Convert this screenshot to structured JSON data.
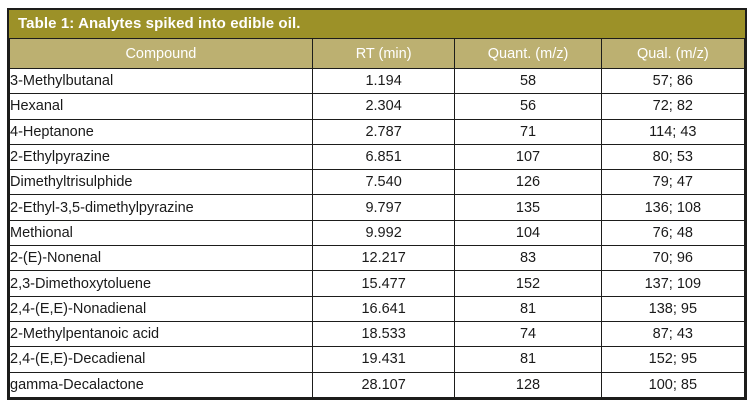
{
  "table": {
    "title": "Table 1: Analytes spiked into edible oil.",
    "columns": [
      "Compound",
      "RT (min)",
      "Quant. (m/z)",
      "Qual. (m/z)"
    ],
    "rows": [
      [
        "3-Methylbutanal",
        "1.194",
        "58",
        "57; 86"
      ],
      [
        "Hexanal",
        "2.304",
        "56",
        "72; 82"
      ],
      [
        "4-Heptanone",
        "2.787",
        "71",
        "114; 43"
      ],
      [
        "2-Ethylpyrazine",
        "6.851",
        "107",
        "80; 53"
      ],
      [
        "Dimethyltrisulphide",
        "7.540",
        "126",
        "79; 47"
      ],
      [
        "2-Ethyl-3,5-dimethylpyrazine",
        "9.797",
        "135",
        "136; 108"
      ],
      [
        "Methional",
        "9.992",
        "104",
        "76; 48"
      ],
      [
        "2-(E)-Nonenal",
        "12.217",
        "83",
        "70; 96"
      ],
      [
        "2,3-Dimethoxytoluene",
        "15.477",
        "152",
        "137; 109"
      ],
      [
        "2,4-(E,E)-Nonadienal",
        "16.641",
        "81",
        "138; 95"
      ],
      [
        "2-Methylpentanoic acid",
        "18.533",
        "74",
        "87; 43"
      ],
      [
        "2,4-(E,E)-Decadienal",
        "19.431",
        "81",
        "152; 95"
      ],
      [
        "gamma-Decalactone",
        "28.107",
        "128",
        "100; 85"
      ]
    ],
    "colors": {
      "title_bg": "#9c9128",
      "header_bg": "#bcb071",
      "border": "#1d1d1b",
      "title_text": "#ffffff",
      "header_text": "#ffffff",
      "body_text": "#1a1a1a"
    }
  }
}
